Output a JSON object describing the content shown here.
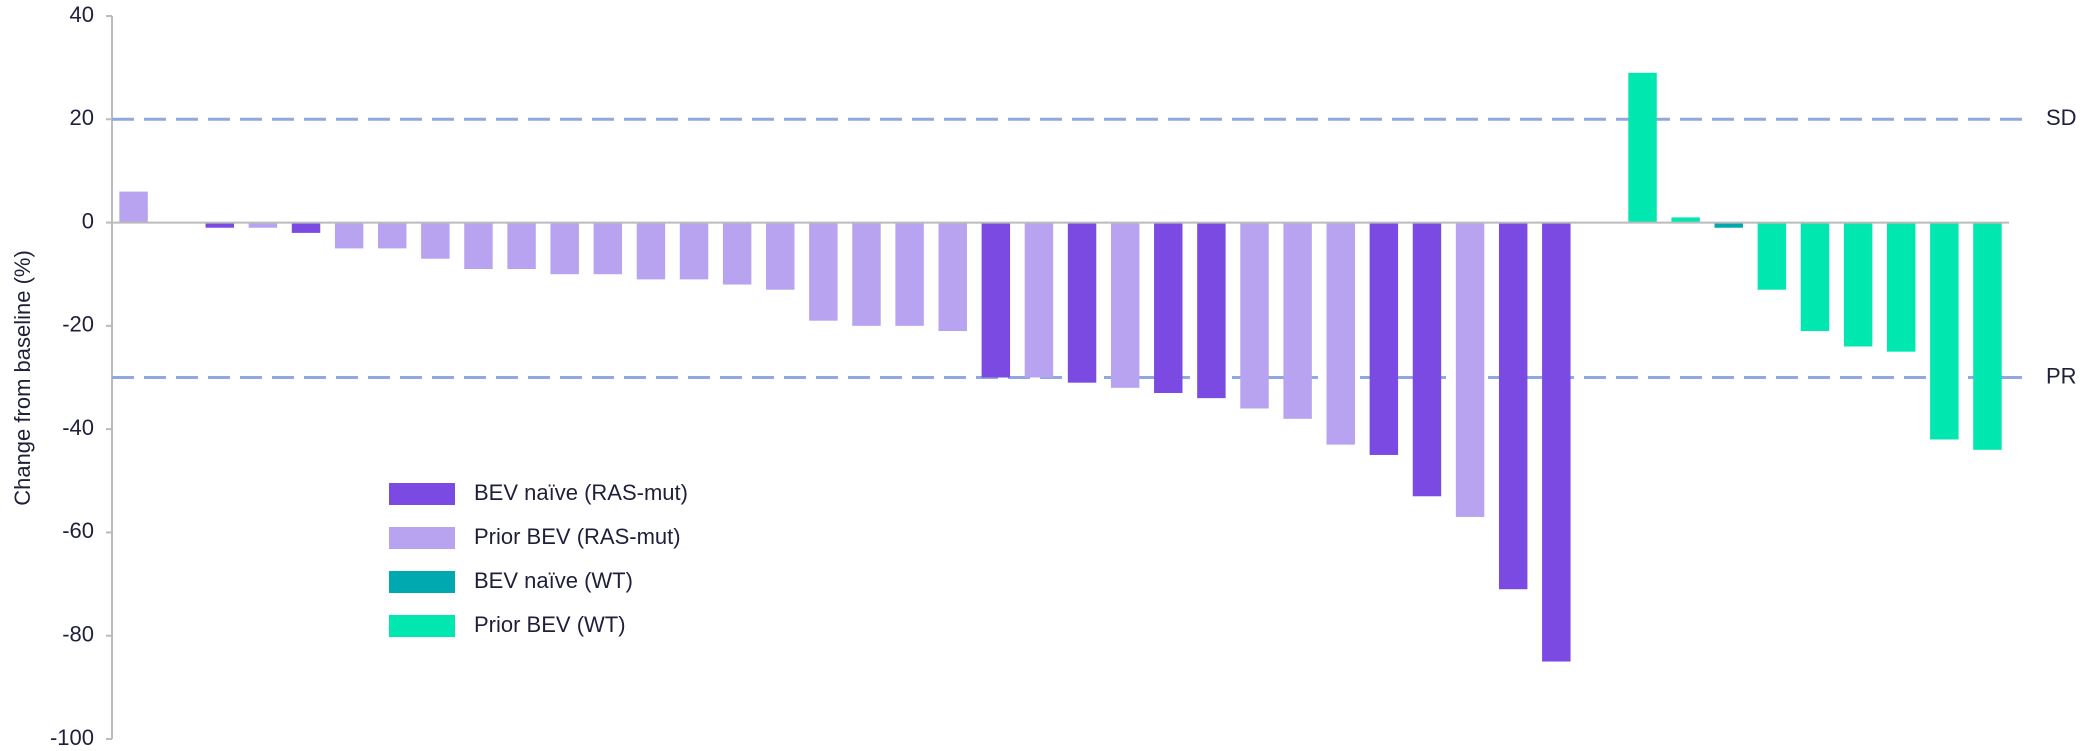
{
  "chart_data": {
    "type": "bar",
    "y_label": "Change from baseline (%)",
    "categories": [
      null,
      null,
      null,
      null,
      null,
      null,
      null,
      null,
      null,
      null,
      null,
      null,
      null,
      null,
      null,
      null,
      null,
      null,
      null,
      null,
      null,
      null,
      null,
      null,
      null,
      null,
      null,
      null,
      null,
      null,
      null,
      null,
      null,
      null,
      null,
      null,
      null,
      null,
      null,
      null,
      null,
      null,
      null,
      null
    ],
    "series": [
      {
        "name": "BEV naïve (RAS-mut)",
        "color": "#7b4ae2",
        "values": [
          null,
          null,
          -1,
          null,
          -2,
          null,
          null,
          null,
          null,
          null,
          null,
          null,
          null,
          null,
          null,
          null,
          null,
          null,
          null,
          null,
          -30,
          null,
          -31,
          null,
          -33,
          -34,
          null,
          null,
          null,
          -45,
          -53,
          null,
          -71,
          -85,
          null,
          null,
          null,
          null,
          null,
          null,
          null,
          null,
          null,
          null
        ]
      },
      {
        "name": "Prior BEV (RAS-mut)",
        "color": "#b8a3f0",
        "values": [
          6,
          null,
          null,
          -1,
          null,
          -5,
          -5,
          -7,
          -9,
          -9,
          -10,
          -10,
          -11,
          -11,
          -12,
          -13,
          -19,
          -20,
          -20,
          -21,
          null,
          -30,
          null,
          -32,
          null,
          null,
          -36,
          -38,
          -43,
          null,
          null,
          -57,
          null,
          null,
          null,
          null,
          null,
          null,
          null,
          null,
          null,
          null,
          null,
          null
        ]
      },
      {
        "name": "BEV naïve (WT)",
        "color": "#00a8b0",
        "values": [
          null,
          null,
          null,
          null,
          null,
          null,
          null,
          null,
          null,
          null,
          null,
          null,
          null,
          null,
          null,
          null,
          null,
          null,
          null,
          null,
          null,
          null,
          null,
          null,
          null,
          null,
          null,
          null,
          null,
          null,
          null,
          null,
          null,
          null,
          null,
          null,
          null,
          -1,
          null,
          null,
          null,
          null,
          null,
          null
        ]
      },
      {
        "name": "Prior BEV (WT)",
        "color": "#00e8b0",
        "values": [
          null,
          null,
          null,
          null,
          null,
          null,
          null,
          null,
          null,
          null,
          null,
          null,
          null,
          null,
          null,
          null,
          null,
          null,
          null,
          null,
          null,
          null,
          null,
          null,
          null,
          null,
          null,
          null,
          null,
          null,
          null,
          null,
          null,
          null,
          null,
          29,
          1,
          null,
          -13,
          -21,
          -24,
          -25,
          -42,
          -44
        ]
      }
    ],
    "ylim": [
      -100,
      40
    ],
    "yticks": [
      -100,
      -80,
      -60,
      -40,
      -20,
      0,
      20,
      40
    ],
    "reference_lines": [
      {
        "value": 20,
        "label": "SD"
      },
      {
        "value": -30,
        "label": "PR"
      }
    ],
    "reference_color": "#8fa8e0"
  }
}
